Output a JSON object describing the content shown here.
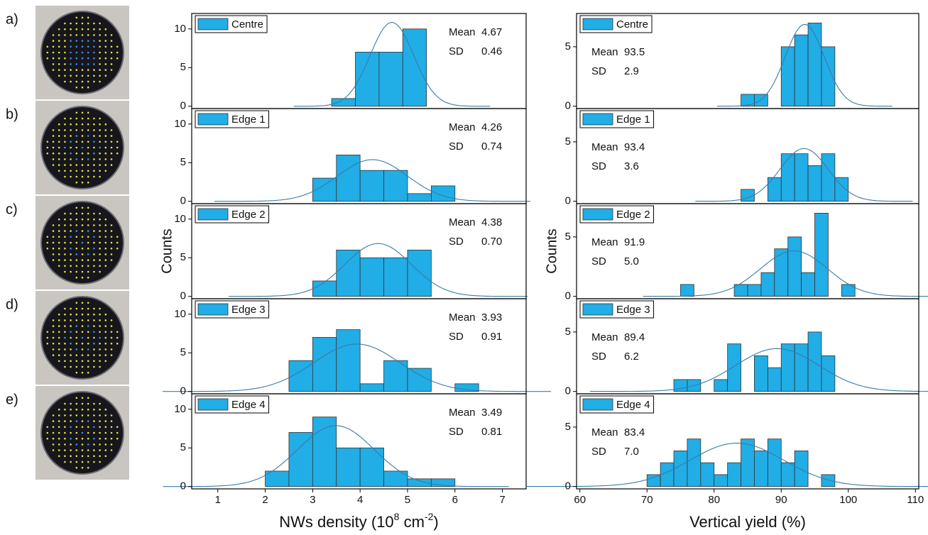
{
  "panels": [
    "a)",
    "b)",
    "c)",
    "d)",
    "e)"
  ],
  "chart_data": [
    {
      "type": "histogram",
      "name": "Centre",
      "color": "#21ade6",
      "bins": [
        3.4,
        3.9,
        4.4,
        4.9,
        5.4
      ],
      "counts": [
        1,
        7,
        7,
        10
      ],
      "xlim": [
        0.45,
        7.5
      ],
      "ylim": [
        -0.3,
        12
      ],
      "yticks": [
        0,
        5,
        10
      ],
      "stat_labels": [
        "Mean",
        "SD"
      ],
      "mean": 4.67,
      "sd": 0.46
    },
    {
      "type": "histogram",
      "name": "Edge 1",
      "color": "#21ade6",
      "bins": [
        3,
        3.5,
        4,
        4.5,
        5,
        5.5,
        6
      ],
      "counts": [
        3,
        6,
        4,
        4,
        1,
        2
      ],
      "xlim": [
        0.45,
        7.5
      ],
      "ylim": [
        -0.3,
        12
      ],
      "yticks": [
        0,
        5,
        10
      ],
      "stat_labels": [
        "Mean",
        "SD"
      ],
      "mean": 4.26,
      "sd": 0.74
    },
    {
      "type": "histogram",
      "name": "Edge 2",
      "color": "#21ade6",
      "bins": [
        3,
        3.5,
        4,
        4.5,
        5,
        5.5
      ],
      "counts": [
        2,
        6,
        5,
        5,
        6
      ],
      "xlim": [
        0.45,
        7.5
      ],
      "ylim": [
        -0.3,
        12
      ],
      "yticks": [
        0,
        5,
        10
      ],
      "stat_labels": [
        "Mean",
        "SD"
      ],
      "mean": 4.38,
      "sd": {
        "value": 0.7,
        "label": "0.70"
      },
      "ylabel": "Counts"
    },
    {
      "type": "histogram",
      "name": "Edge 3",
      "color": "#21ade6",
      "bins": [
        2.5,
        3,
        3.5,
        4,
        4.5,
        5,
        5.5,
        6,
        6.5
      ],
      "counts": [
        4,
        7,
        8,
        1,
        4,
        3,
        0,
        1
      ],
      "xlim": [
        0.45,
        7.5
      ],
      "ylim": [
        -0.3,
        12
      ],
      "yticks": [
        0,
        5,
        10
      ],
      "stat_labels": [
        "Mean",
        "SD"
      ],
      "mean": 3.93,
      "sd": 0.91
    },
    {
      "type": "histogram",
      "name": "Edge 4",
      "color": "#21ade6",
      "bins": [
        2,
        2.5,
        3,
        3.5,
        4,
        4.5,
        5,
        5.5,
        6
      ],
      "counts": [
        2,
        7,
        9,
        5,
        5,
        2,
        1,
        1
      ],
      "xlim": [
        0.45,
        7.5
      ],
      "ylim": [
        -0.3,
        12
      ],
      "yticks": [
        0,
        5,
        10
      ],
      "stat_labels": [
        "Mean",
        "SD"
      ],
      "mean": 3.49,
      "sd": 0.81,
      "xticks": [
        1,
        2,
        3,
        4,
        5,
        6,
        7
      ],
      "xlabel": [
        "NWs density (10",
        "8",
        " cm",
        "-2",
        ")"
      ]
    },
    {
      "type": "histogram",
      "name": "Centre",
      "color": "#21ade6",
      "bins": [
        84,
        86,
        88,
        90,
        92,
        94,
        96,
        98
      ],
      "counts": [
        1,
        1,
        0,
        5,
        6,
        7,
        5
      ],
      "xlim": [
        59.5,
        110.5
      ],
      "ylim": [
        -0.2,
        7.8
      ],
      "yticks": [
        0,
        5
      ],
      "stat_labels": [
        "Mean",
        "SD"
      ],
      "mean": 93.5,
      "sd": 2.9
    },
    {
      "type": "histogram",
      "name": "Edge 1",
      "color": "#21ade6",
      "bins": [
        84,
        86,
        88,
        90,
        92,
        94,
        96,
        98,
        100
      ],
      "counts": [
        1,
        0,
        2,
        4,
        4,
        3,
        4,
        2
      ],
      "xlim": [
        59.5,
        110.5
      ],
      "ylim": [
        -0.2,
        7.8
      ],
      "yticks": [
        0,
        5
      ],
      "stat_labels": [
        "Mean",
        "SD"
      ],
      "mean": 93.4,
      "sd": 3.6
    },
    {
      "type": "histogram",
      "name": "Edge 2",
      "color": "#21ade6",
      "bins": [
        75,
        77,
        79,
        81,
        83,
        85,
        87,
        89,
        91,
        93,
        95,
        97,
        99,
        101
      ],
      "counts": [
        1,
        0,
        0,
        0,
        1,
        1,
        2,
        4,
        5,
        2,
        7,
        0,
        1
      ],
      "xlim": [
        59.5,
        110.5
      ],
      "ylim": [
        -0.2,
        7.8
      ],
      "yticks": [
        0,
        5
      ],
      "stat_labels": [
        "Mean",
        "SD"
      ],
      "mean": 91.9,
      "sd": {
        "value": 5,
        "label": "5.0"
      },
      "ylabel": "Counts"
    },
    {
      "type": "histogram",
      "name": "Edge 3",
      "color": "#21ade6",
      "bins": [
        74,
        76,
        78,
        80,
        82,
        84,
        86,
        88,
        90,
        92,
        94,
        96,
        98
      ],
      "counts": [
        1,
        1,
        0,
        1,
        4,
        0,
        3,
        2,
        4,
        4,
        5,
        3
      ],
      "xlim": [
        59.5,
        110.5
      ],
      "ylim": [
        -0.2,
        7.8
      ],
      "yticks": [
        0,
        5
      ],
      "stat_labels": [
        "Mean",
        "SD"
      ],
      "mean": 89.4,
      "sd": 6.2
    },
    {
      "type": "histogram",
      "name": "Edge 4",
      "color": "#21ade6",
      "bins": [
        70,
        72,
        74,
        76,
        78,
        80,
        82,
        84,
        86,
        88,
        90,
        92,
        94,
        96,
        98
      ],
      "counts": [
        1,
        2,
        3,
        4,
        2,
        1,
        2,
        4,
        3,
        4,
        2,
        3,
        0,
        1
      ],
      "xlim": [
        59.5,
        110.5
      ],
      "ylim": [
        -0.2,
        7.8
      ],
      "yticks": [
        0,
        5
      ],
      "stat_labels": [
        "Mean",
        "SD"
      ],
      "mean": 83.4,
      "sd": {
        "value": 7,
        "label": "7.0"
      },
      "xticks": [
        60,
        70,
        80,
        90,
        100,
        110
      ],
      "xlabel": [
        "Vertical yield (%)"
      ]
    }
  ]
}
